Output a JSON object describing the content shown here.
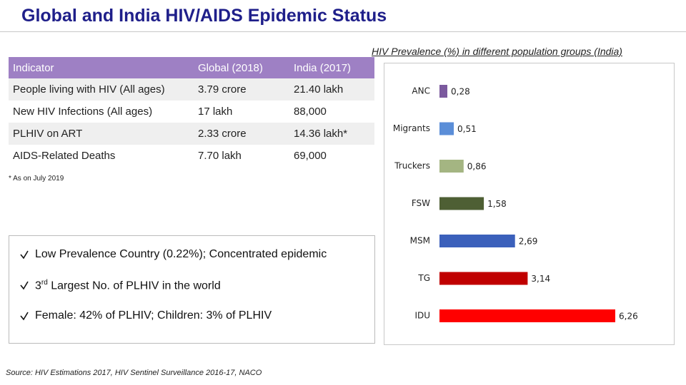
{
  "header": {
    "title": "Global and India HIV/AIDS Epidemic Status"
  },
  "table": {
    "columns": [
      "Indicator",
      "Global (2018)",
      "India (2017)"
    ],
    "rows": [
      [
        "People living with HIV (All ages)",
        "3.79 crore",
        "21.40 lakh"
      ],
      [
        "New HIV Infections (All ages)",
        "17 lakh",
        "88,000"
      ],
      [
        "PLHIV on ART",
        "2.33 crore",
        "14.36 lakh*"
      ],
      [
        "AIDS-Related Deaths",
        "7.70 lakh",
        "69,000"
      ]
    ],
    "note": "* As on July 2019"
  },
  "bullets": [
    {
      "text": "Low Prevalence Country (0.22%); Concentrated epidemic"
    },
    {
      "prefix": "3",
      "sup": "rd",
      "text": " Largest No. of PLHIV in the world"
    },
    {
      "text": "Female: 42% of PLHIV; Children: 3% of PLHIV"
    }
  ],
  "source": "Source: HIV Estimations 2017, HIV Sentinel Surveillance 2016-17, NACO",
  "chart_data": {
    "type": "hbar",
    "title": "HIV Prevalence (%) in different population groups (India)",
    "categories": [
      "ANC",
      "Migrants",
      "Truckers",
      "FSW",
      "MSM",
      "TG",
      "IDU"
    ],
    "values": [
      0.28,
      0.51,
      0.86,
      1.58,
      2.69,
      3.14,
      6.26
    ],
    "value_labels": [
      "0,28",
      "0,51",
      "0,86",
      "1,58",
      "2,69",
      "3,14",
      "6,26"
    ],
    "colors": [
      "#7b5a9e",
      "#5b8ed8",
      "#a4b582",
      "#4e5f34",
      "#3b60bb",
      "#c00000",
      "#ff0000"
    ]
  }
}
